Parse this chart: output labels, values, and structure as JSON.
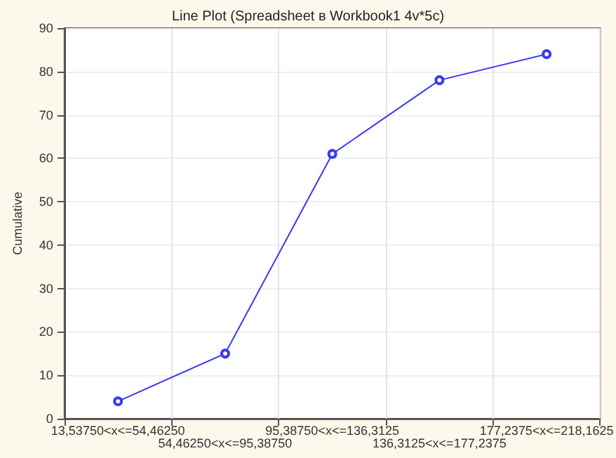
{
  "chart_data": {
    "type": "line",
    "title": "Line Plot (Spreadsheet в Workbook1 4v*5c)",
    "ylabel": "Cumulative",
    "categories": [
      "13,53750<x<=54,46250",
      "54,46250<x<=95,38750",
      "95,38750<x<=136,3125",
      "136,3125<x<=177,2375",
      "177,2375<x<=218,1625"
    ],
    "series": [
      {
        "color": "#3a3af0",
        "values": [
          4,
          15,
          61,
          78,
          84
        ]
      }
    ],
    "ylim": [
      0,
      90
    ],
    "yticks": [
      0,
      10,
      20,
      30,
      40,
      50,
      60,
      70,
      80,
      90
    ],
    "grid": true,
    "marker": "circle",
    "line_style": "solid"
  }
}
